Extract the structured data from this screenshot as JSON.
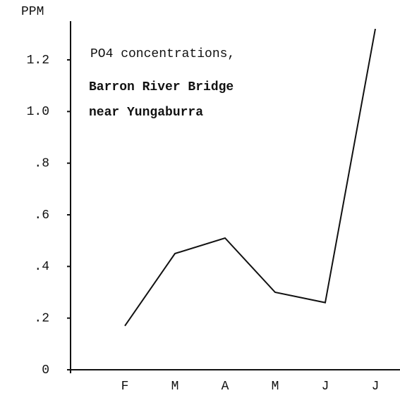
{
  "chart_data": {
    "type": "line",
    "title": [
      "PO4 concentrations,",
      "Barron River Bridge",
      "near Yungaburra"
    ],
    "y_label": "PPM",
    "categories": [
      "F",
      "M",
      "A",
      "M",
      "J",
      "J"
    ],
    "series": [
      {
        "name": "PO4",
        "color": "#111111",
        "values": [
          0.17,
          0.45,
          0.51,
          0.3,
          0.26,
          1.32
        ]
      }
    ],
    "ylim": [
      0,
      1.35
    ],
    "yticks": [
      0,
      {
        "value": 0.2,
        "label": ".2"
      },
      {
        "value": 0.4,
        "label": ".4"
      },
      {
        "value": 0.6,
        "label": ".6"
      },
      {
        "value": 0.8,
        "label": ".8"
      },
      {
        "value": 1,
        "label": "1.0"
      },
      1.2
    ]
  }
}
